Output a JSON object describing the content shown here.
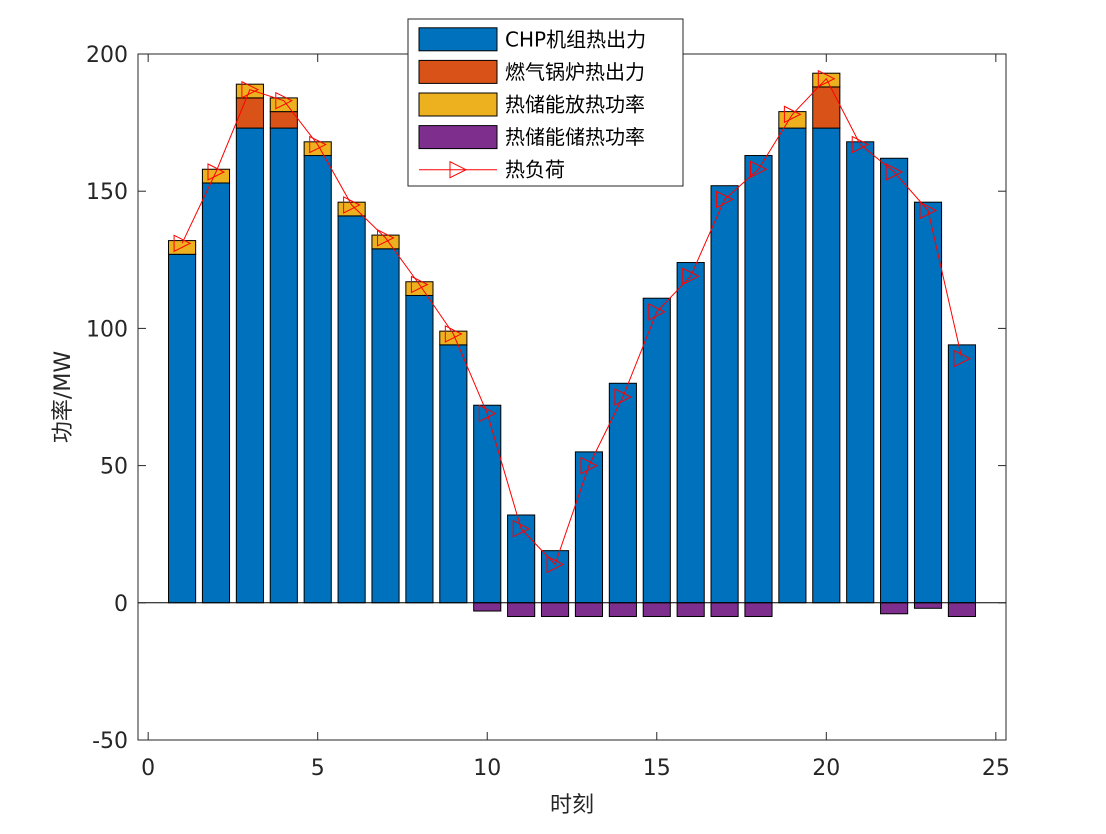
{
  "chart_data": {
    "type": "bar",
    "stacked": true,
    "xlabel": "时刻",
    "ylabel": "功率/MW",
    "xlim": [
      -0.3,
      25.3
    ],
    "ylim": [
      -50,
      200
    ],
    "xticks": [
      0,
      5,
      10,
      15,
      20,
      25
    ],
    "yticks": [
      -50,
      0,
      50,
      100,
      150,
      200
    ],
    "x": [
      1,
      2,
      3,
      4,
      5,
      6,
      7,
      8,
      9,
      10,
      11,
      12,
      13,
      14,
      15,
      16,
      17,
      18,
      19,
      20,
      21,
      22,
      23,
      24
    ],
    "legend_position": "top-center",
    "box": true,
    "grid": false,
    "series": [
      {
        "name": "CHP机组热出力",
        "kind": "bar",
        "color": "#0072BD",
        "values": [
          127,
          153,
          173,
          173,
          163,
          141,
          129,
          112,
          94,
          72,
          32,
          19,
          55,
          80,
          111,
          124,
          152,
          163,
          173,
          173,
          168,
          162,
          146,
          94
        ]
      },
      {
        "name": "燃气锅炉热出力",
        "kind": "bar",
        "color": "#D95319",
        "values": [
          0,
          0,
          11,
          6,
          0,
          0,
          0,
          0,
          0,
          0,
          0,
          0,
          0,
          0,
          0,
          0,
          0,
          0,
          0,
          15,
          0,
          0,
          0,
          0
        ]
      },
      {
        "name": "热储能放热功率",
        "kind": "bar",
        "color": "#EDB120",
        "values": [
          5,
          5,
          5,
          5,
          5,
          5,
          5,
          5,
          5,
          0,
          0,
          0,
          0,
          0,
          0,
          0,
          0,
          0,
          6,
          5,
          0,
          0,
          0,
          0
        ]
      },
      {
        "name": "热储能储热功率",
        "kind": "bar",
        "color": "#7E2F8E",
        "values": [
          0,
          0,
          0,
          0,
          0,
          0,
          0,
          0,
          0,
          -3,
          -5,
          -5,
          -5,
          -5,
          -5,
          -5,
          -5,
          -5,
          0,
          0,
          0,
          -4,
          -2,
          -5
        ]
      },
      {
        "name": "热负荷",
        "kind": "line",
        "marker": "triangle-right",
        "color": "#FF0000",
        "values": [
          131,
          157,
          187,
          183,
          167,
          145,
          133,
          116,
          98,
          69,
          27,
          14,
          50,
          75,
          106,
          119,
          147,
          158,
          178,
          191,
          167,
          157,
          143,
          89
        ]
      }
    ]
  }
}
